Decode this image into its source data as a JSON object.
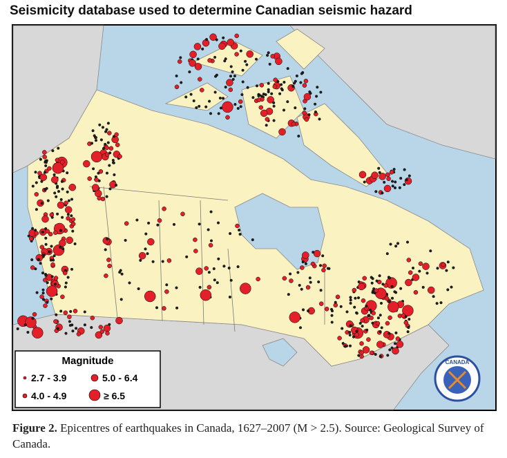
{
  "title": "Seismicity database used to determine Canadian seismic hazard",
  "legend": {
    "title": "Magnitude",
    "entries": [
      "2.7 - 3.9",
      "5.0 - 6.4",
      "4.0 - 4.9",
      "≥ 6.5"
    ]
  },
  "logo": {
    "text": "CANADA"
  },
  "caption": {
    "label": "Figure 2.",
    "text": "Epicentres of earthquakes in Canada, 1627–2007 (M > 2.5). Source: Geological Survey of Canada."
  }
}
